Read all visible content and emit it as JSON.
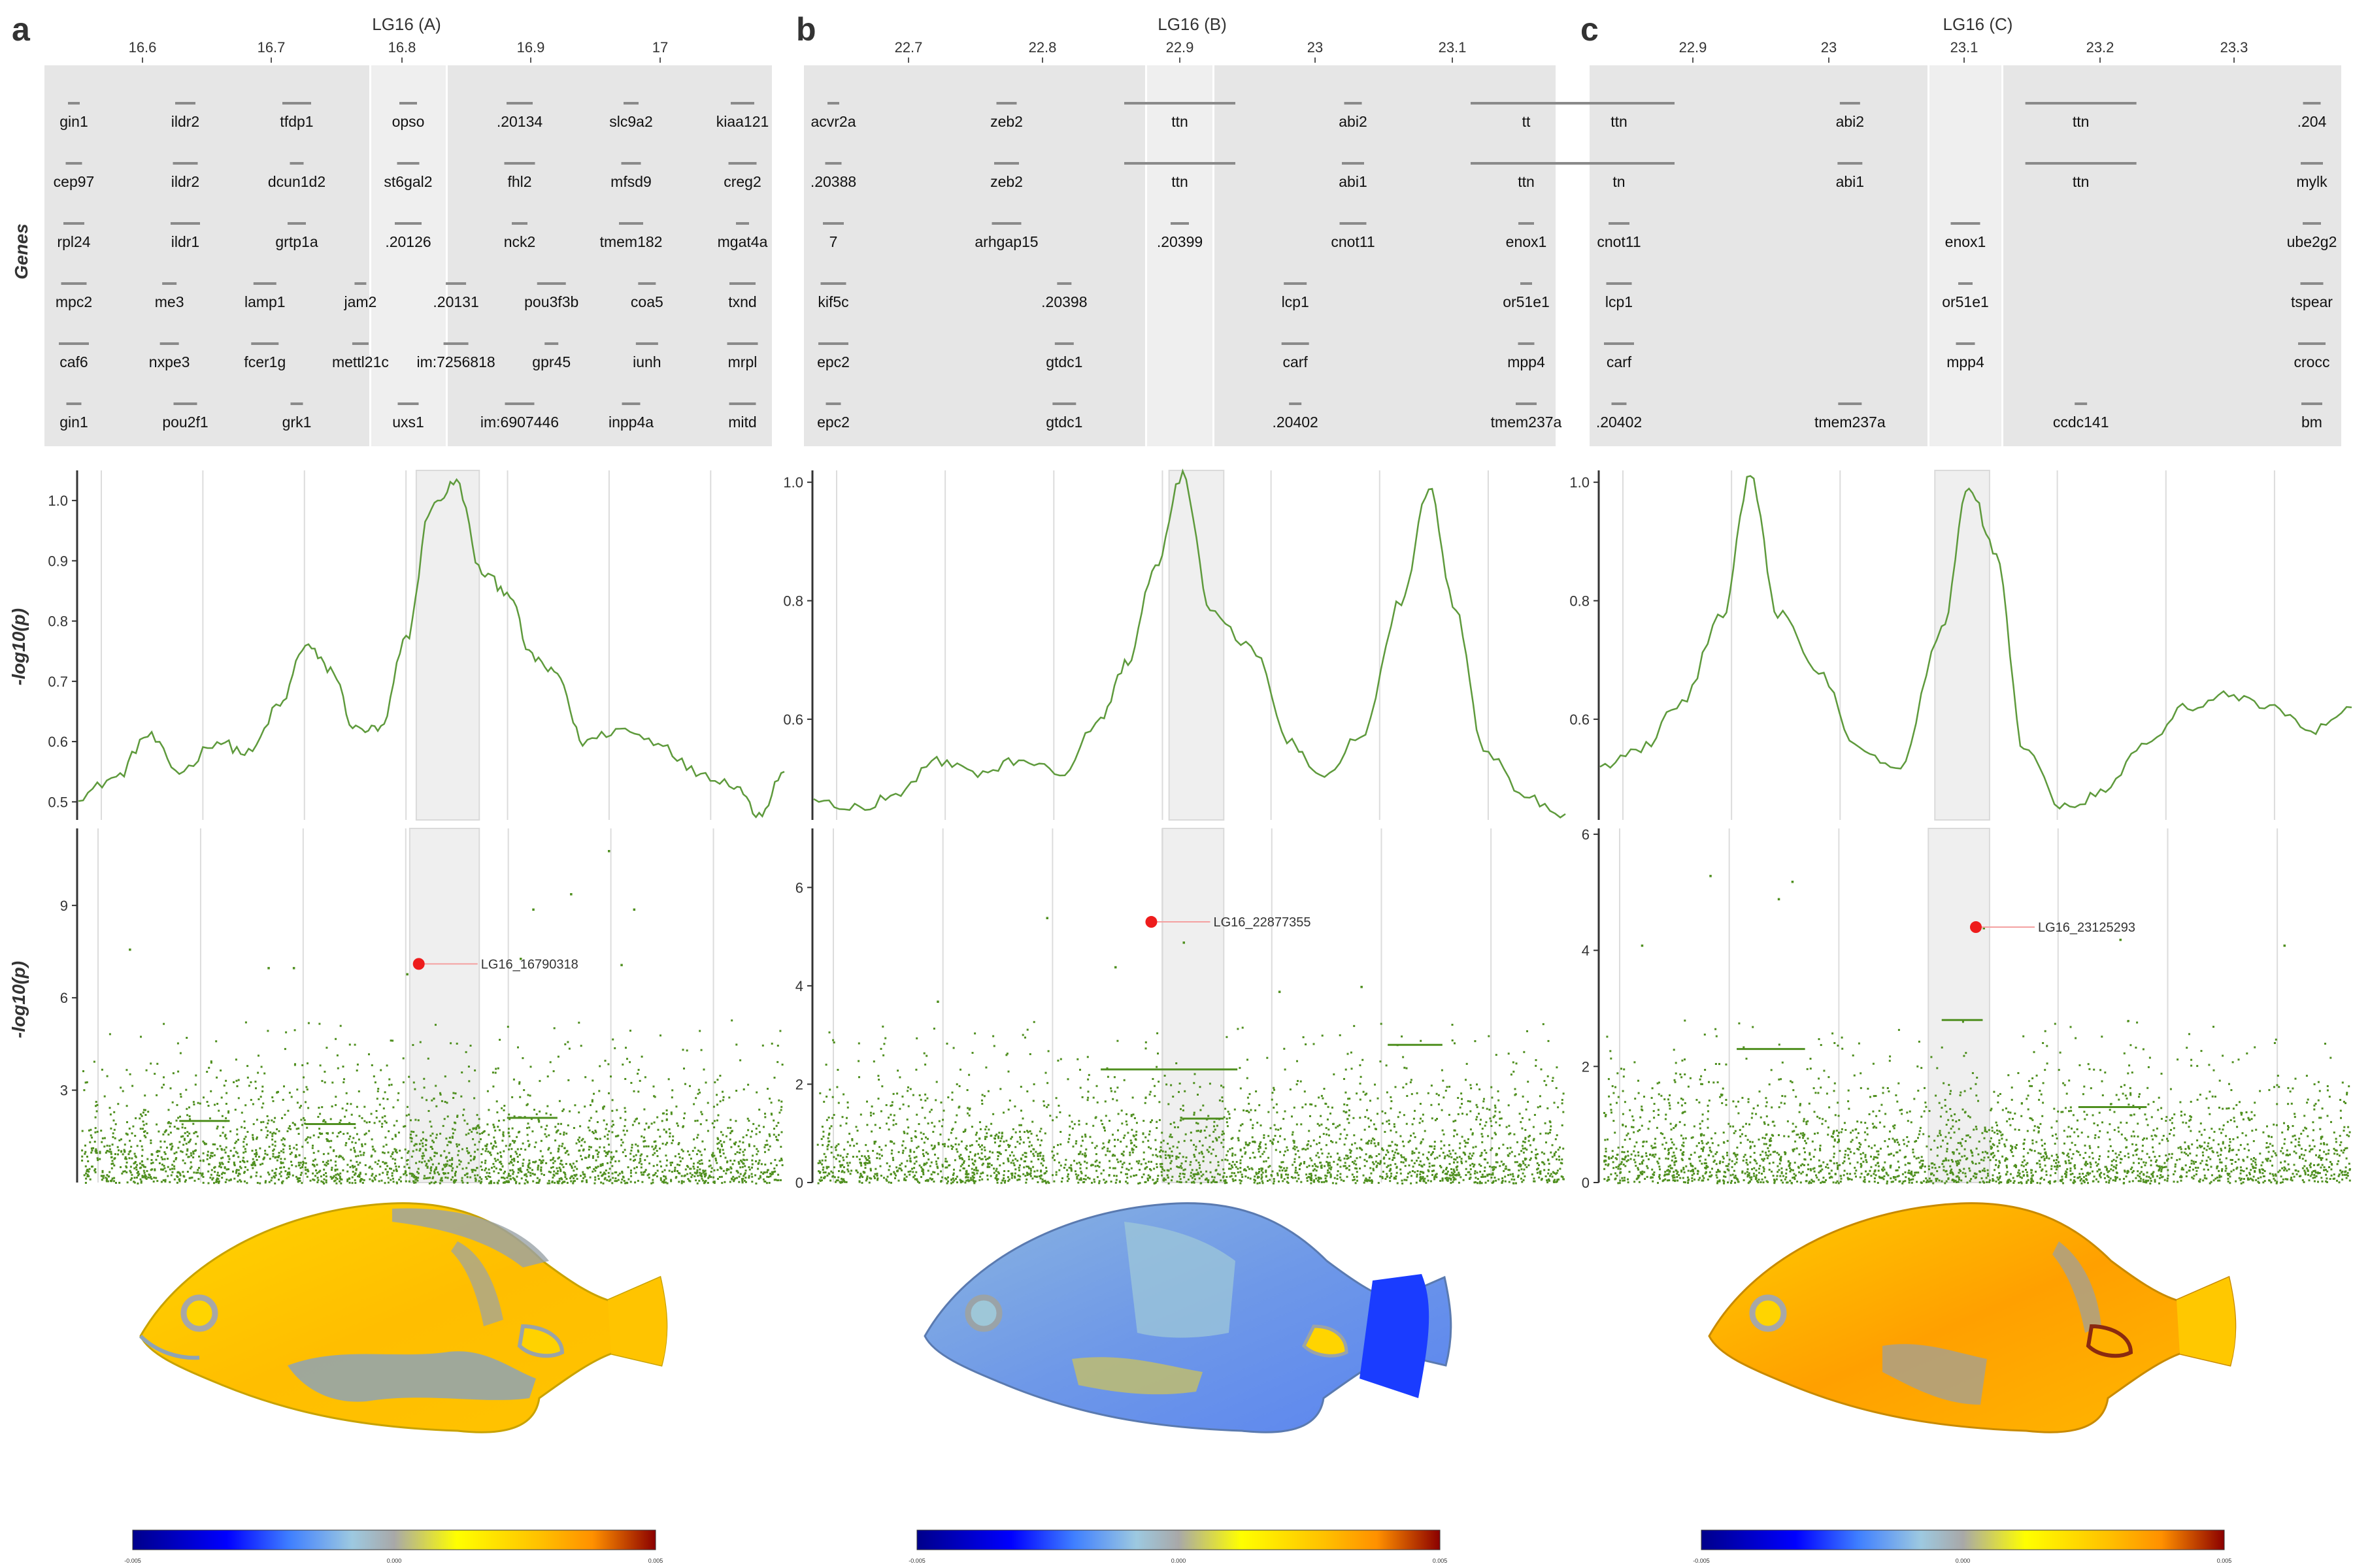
{
  "panels": [
    {
      "letter": "a",
      "title": "LG16 (A)",
      "genes_axis_ticks": [
        16.6,
        16.7,
        16.8,
        16.9,
        17
      ],
      "genes_ylabel": "Genes",
      "gene_labels": [
        [
          "gin1",
          "ildr2",
          "tfdp1",
          "opso",
          ".20134",
          "slc9a2",
          "kiaa121"
        ],
        [
          "cep97",
          "ildr2",
          "dcun1d2",
          "st6gal2",
          "fhl2",
          "mfsd9",
          "creg2"
        ],
        [
          "rpl24",
          "ildr1",
          "grtp1a",
          ".20126",
          "nck2",
          "tmem182",
          "mgat4a"
        ],
        [
          "mpc2",
          "me3",
          "lamp1",
          "jam2",
          ".20131",
          "pou3f3b",
          "coa5",
          "txnd"
        ],
        [
          "caf6",
          "nxpe3",
          "fcer1g",
          "mettl21c",
          "im:7256818",
          "gpr45",
          "iunh",
          "mrpl"
        ],
        [
          "gin1",
          "pou2f1",
          "grk1",
          "uxs1",
          "im:6907446",
          "inpp4a",
          "mitd"
        ]
      ],
      "assoc_ylabel": "-log10(p)",
      "assoc_ticks": [
        "0.5",
        "0.6",
        "0.7",
        "0.8",
        "0.9",
        "1.0"
      ],
      "manhattan_ylabel": "-log10(p)",
      "manhattan_ticks": [
        "3",
        "6",
        "9"
      ],
      "lead_snp": "LG16_16790318",
      "colorbar_ticks": [
        "-0.005",
        "0.000",
        "0.005"
      ]
    },
    {
      "letter": "b",
      "title": "LG16 (B)",
      "genes_axis_ticks": [
        22.7,
        22.8,
        22.9,
        23,
        23.1
      ],
      "gene_labels": [
        [
          "acvr2a",
          "zeb2",
          "ttn",
          "abi2",
          "tt"
        ],
        [
          ".20388",
          "zeb2",
          "ttn",
          "abi1",
          "ttn"
        ],
        [
          "7",
          "arhgap15",
          ".20399",
          "cnot11",
          "enox1"
        ],
        [
          "kif5c",
          ".20398",
          "lcp1",
          "or51e1"
        ],
        [
          "epc2",
          "gtdc1",
          "carf",
          "mpp4"
        ],
        [
          "epc2",
          "gtdc1",
          ".20402",
          "tmem237a"
        ]
      ],
      "assoc_ticks": [
        "0.6",
        "0.8",
        "1.0"
      ],
      "manhattan_ticks": [
        "0",
        "2",
        "4",
        "6"
      ],
      "lead_snp": "LG16_22877355",
      "colorbar_ticks": [
        "-0.005",
        "0.000",
        "0.005"
      ]
    },
    {
      "letter": "c",
      "title": "LG16 (C)",
      "genes_axis_ticks": [
        22.9,
        23,
        23.1,
        23.2,
        23.3
      ],
      "gene_labels": [
        [
          "ttn",
          "abi2",
          "ttn",
          ".204"
        ],
        [
          "tn",
          "abi1",
          "ttn",
          "mylk"
        ],
        [
          "cnot11",
          "enox1",
          "ube2g2"
        ],
        [
          "lcp1",
          "or51e1",
          "tspear"
        ],
        [
          "carf",
          "mpp4",
          "crocc"
        ],
        [
          ".20402",
          "tmem237a",
          "ccdc141",
          "bm"
        ]
      ],
      "assoc_ticks": [
        "0.6",
        "0.8",
        "1.0"
      ],
      "manhattan_ticks": [
        "0",
        "2",
        "4",
        "6"
      ],
      "lead_snp": "LG16_23125293",
      "colorbar_ticks": [
        "-0.005",
        "0.000",
        "0.005"
      ]
    }
  ],
  "colors": {
    "line": "#5e9a3c",
    "points": "#4f8f1f",
    "lead": "#ee1c1c",
    "gene_panel_bg": "#e6e6e6",
    "gene_mark": "#8a8a8a",
    "highlight_bg": "#efefef",
    "colorbar": [
      "#00008b",
      "#0000ff",
      "#3f7fff",
      "#9dc9e0",
      "#a8a8a8",
      "#ffff00",
      "#ffc000",
      "#ff9000",
      "#8b0000"
    ]
  },
  "chart_data": [
    {
      "type": "line",
      "panel": "a",
      "xlabel": "",
      "ylabel": "-log10(p)",
      "x_range": [
        16.52,
        17.08
      ],
      "ylim": [
        0.47,
        1.05
      ],
      "highlight_x": [
        16.788,
        16.838
      ],
      "lead_snp": "LG16_16790318",
      "x": [
        16.52,
        16.55,
        16.575,
        16.6,
        16.63,
        16.655,
        16.68,
        16.7,
        16.72,
        16.74,
        16.76,
        16.78,
        16.8,
        16.82,
        16.84,
        16.86,
        16.88,
        16.9,
        16.92,
        16.95,
        16.98,
        17.01,
        17.04,
        17.06,
        17.08
      ],
      "values": [
        0.51,
        0.54,
        0.61,
        0.55,
        0.6,
        0.58,
        0.66,
        0.76,
        0.72,
        0.62,
        0.62,
        0.77,
        0.99,
        1.03,
        0.88,
        0.85,
        0.74,
        0.71,
        0.6,
        0.62,
        0.6,
        0.55,
        0.53,
        0.48,
        0.55
      ]
    },
    {
      "type": "line",
      "panel": "b",
      "xlabel": "",
      "ylabel": "-log10(p)",
      "x_range": [
        22.63,
        23.18
      ],
      "ylim": [
        0.43,
        1.02
      ],
      "highlight_x": [
        22.89,
        22.93
      ],
      "lead_snp": "LG16_22877355",
      "x": [
        22.63,
        22.66,
        22.69,
        22.72,
        22.75,
        22.78,
        22.81,
        22.84,
        22.86,
        22.88,
        22.9,
        22.92,
        22.95,
        22.98,
        23.0,
        23.03,
        23.06,
        23.08,
        23.1,
        23.12,
        23.15,
        23.18
      ],
      "values": [
        0.46,
        0.45,
        0.47,
        0.53,
        0.51,
        0.53,
        0.51,
        0.6,
        0.7,
        0.86,
        1.01,
        0.79,
        0.72,
        0.56,
        0.5,
        0.57,
        0.8,
        0.99,
        0.78,
        0.55,
        0.47,
        0.44
      ]
    },
    {
      "type": "line",
      "panel": "c",
      "xlabel": "",
      "ylabel": "-log10(p)",
      "x_range": [
        22.85,
        23.4
      ],
      "ylim": [
        0.43,
        1.02
      ],
      "highlight_x": [
        23.095,
        23.135
      ],
      "lead_snp": "LG16_23125293",
      "x": [
        22.85,
        22.88,
        22.91,
        22.94,
        22.96,
        22.98,
        23.01,
        23.04,
        23.07,
        23.1,
        23.12,
        23.14,
        23.16,
        23.19,
        23.22,
        23.25,
        23.28,
        23.31,
        23.34,
        23.37,
        23.4
      ],
      "values": [
        0.52,
        0.55,
        0.63,
        0.78,
        1.01,
        0.78,
        0.68,
        0.55,
        0.52,
        0.75,
        0.99,
        0.88,
        0.55,
        0.45,
        0.48,
        0.56,
        0.62,
        0.64,
        0.62,
        0.58,
        0.62
      ]
    },
    {
      "type": "scatter",
      "panel": "a",
      "xlabel": "",
      "ylabel": "-log10(p)",
      "ylim": [
        0,
        11.5
      ],
      "lead_snp": {
        "label": "LG16_16790318",
        "x": 16.79,
        "y": 7.1
      },
      "notable_points": [
        [
          16.56,
          7.6
        ],
        [
          16.67,
          7.0
        ],
        [
          16.69,
          7.0
        ],
        [
          16.78,
          6.8
        ],
        [
          16.88,
          8.9
        ],
        [
          16.91,
          9.4
        ],
        [
          16.94,
          10.8
        ],
        [
          16.96,
          8.9
        ],
        [
          16.87,
          7.3
        ],
        [
          16.95,
          7.1
        ]
      ],
      "plateau_segments": [
        [
          16.6,
          16.64,
          2.0
        ],
        [
          16.7,
          16.74,
          1.9
        ],
        [
          16.86,
          16.9,
          2.1
        ]
      ]
    },
    {
      "type": "scatter",
      "panel": "b",
      "xlabel": "",
      "ylabel": "-log10(p)",
      "ylim": [
        0,
        7.2
      ],
      "lead_snp": {
        "label": "LG16_22877355",
        "x": 22.877,
        "y": 5.3
      },
      "notable_points": [
        [
          22.8,
          5.4
        ],
        [
          22.85,
          4.4
        ],
        [
          22.9,
          4.9
        ],
        [
          22.72,
          3.7
        ],
        [
          22.97,
          3.9
        ],
        [
          23.03,
          4.0
        ]
      ],
      "plateau_segments": [
        [
          22.84,
          22.94,
          2.3
        ],
        [
          23.05,
          23.09,
          2.8
        ],
        [
          22.9,
          22.93,
          1.3
        ]
      ]
    },
    {
      "type": "scatter",
      "panel": "c",
      "xlabel": "",
      "ylabel": "-log10(p)",
      "ylim": [
        0,
        6.1
      ],
      "lead_snp": {
        "label": "LG16_23125293",
        "x": 23.125,
        "y": 4.4
      },
      "notable_points": [
        [
          22.93,
          5.3
        ],
        [
          22.99,
          5.2
        ],
        [
          22.98,
          4.9
        ],
        [
          22.88,
          4.1
        ],
        [
          23.13,
          4.4
        ],
        [
          23.23,
          4.2
        ],
        [
          23.35,
          4.1
        ]
      ],
      "plateau_segments": [
        [
          22.95,
          23.0,
          2.3
        ],
        [
          23.1,
          23.13,
          2.8
        ],
        [
          23.2,
          23.25,
          1.3
        ]
      ]
    }
  ]
}
